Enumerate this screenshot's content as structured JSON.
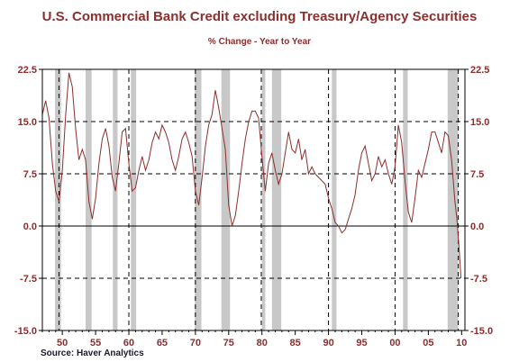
{
  "chart_data": {
    "type": "line",
    "title": "U.S. Commercial Bank Credit excluding Treasury/Agency Securities",
    "subtitle": "% Change - Year to Year",
    "source": "Source: Haver Analytics",
    "x_tick_labels": [
      "50",
      "55",
      "60",
      "65",
      "70",
      "75",
      "80",
      "85",
      "90",
      "95",
      "00",
      "05",
      "10"
    ],
    "x_tick_years": [
      1950,
      1955,
      1960,
      1965,
      1970,
      1975,
      1980,
      1985,
      1990,
      1995,
      2000,
      2005,
      2010
    ],
    "y_tick_labels": [
      "22.5",
      "15.0",
      "7.5",
      "0.0",
      "-7.5",
      "-15.0"
    ],
    "y_ticks": [
      22.5,
      15,
      7.5,
      0,
      -7.5,
      -15
    ],
    "xlim": [
      1947,
      2010.5
    ],
    "ylim": [
      -15,
      22.5
    ],
    "grid": "dashed horizontal lines at 7.5 and 15.0, -7.5; solid at 0",
    "recessions": [
      [
        1948.9,
        1949.8
      ],
      [
        1953.5,
        1954.4
      ],
      [
        1957.6,
        1958.3
      ],
      [
        1960.3,
        1961.1
      ],
      [
        1969.9,
        1970.9
      ],
      [
        1973.9,
        1975.2
      ],
      [
        1980.0,
        1980.5
      ],
      [
        1981.5,
        1982.9
      ],
      [
        1990.5,
        1991.2
      ],
      [
        2001.2,
        2001.9
      ],
      [
        2007.9,
        2009.5
      ]
    ],
    "vertical_dashed_lines": [
      1949.5,
      1960.0,
      1970.0,
      1979.9,
      1990.0,
      2000.0,
      2009.5
    ],
    "series": [
      {
        "color": "#8b2e2e",
        "points": [
          [
            1947.0,
            16.0
          ],
          [
            1947.5,
            18.0
          ],
          [
            1948.0,
            15.5
          ],
          [
            1948.5,
            9.0
          ],
          [
            1949.0,
            5.0
          ],
          [
            1949.5,
            3.5
          ],
          [
            1950.0,
            8.0
          ],
          [
            1950.5,
            16.0
          ],
          [
            1951.0,
            22.0
          ],
          [
            1951.5,
            20.0
          ],
          [
            1952.0,
            14.0
          ],
          [
            1952.5,
            9.5
          ],
          [
            1953.0,
            11.0
          ],
          [
            1953.5,
            9.5
          ],
          [
            1954.0,
            3.5
          ],
          [
            1954.5,
            1.0
          ],
          [
            1955.0,
            4.0
          ],
          [
            1955.5,
            9.0
          ],
          [
            1956.0,
            12.5
          ],
          [
            1956.5,
            14.0
          ],
          [
            1957.0,
            11.5
          ],
          [
            1957.5,
            7.0
          ],
          [
            1958.0,
            5.0
          ],
          [
            1958.5,
            9.0
          ],
          [
            1959.0,
            13.5
          ],
          [
            1959.5,
            14.0
          ],
          [
            1960.0,
            9.0
          ],
          [
            1960.5,
            5.0
          ],
          [
            1961.0,
            5.5
          ],
          [
            1961.5,
            8.0
          ],
          [
            1962.0,
            10.0
          ],
          [
            1962.5,
            8.0
          ],
          [
            1963.0,
            9.5
          ],
          [
            1963.5,
            12.0
          ],
          [
            1964.0,
            13.5
          ],
          [
            1964.5,
            12.5
          ],
          [
            1965.0,
            14.5
          ],
          [
            1965.5,
            13.5
          ],
          [
            1966.0,
            12.0
          ],
          [
            1966.5,
            9.5
          ],
          [
            1967.0,
            8.0
          ],
          [
            1967.5,
            10.0
          ],
          [
            1968.0,
            12.5
          ],
          [
            1968.5,
            13.5
          ],
          [
            1969.0,
            12.0
          ],
          [
            1969.5,
            10.0
          ],
          [
            1970.0,
            5.0
          ],
          [
            1970.5,
            3.0
          ],
          [
            1971.0,
            7.0
          ],
          [
            1971.5,
            11.5
          ],
          [
            1972.0,
            14.5
          ],
          [
            1972.5,
            16.0
          ],
          [
            1973.0,
            19.5
          ],
          [
            1973.5,
            17.0
          ],
          [
            1974.0,
            14.0
          ],
          [
            1974.5,
            11.0
          ],
          [
            1975.0,
            3.0
          ],
          [
            1975.5,
            0.0
          ],
          [
            1976.0,
            1.5
          ],
          [
            1976.5,
            5.0
          ],
          [
            1977.0,
            9.0
          ],
          [
            1977.5,
            12.5
          ],
          [
            1978.0,
            15.0
          ],
          [
            1978.5,
            16.5
          ],
          [
            1979.0,
            16.5
          ],
          [
            1979.5,
            15.5
          ],
          [
            1980.0,
            10.0
          ],
          [
            1980.5,
            5.0
          ],
          [
            1981.0,
            9.0
          ],
          [
            1981.5,
            10.5
          ],
          [
            1982.0,
            8.0
          ],
          [
            1982.5,
            6.0
          ],
          [
            1983.0,
            7.5
          ],
          [
            1983.5,
            10.5
          ],
          [
            1984.0,
            13.5
          ],
          [
            1984.5,
            11.0
          ],
          [
            1985.0,
            10.5
          ],
          [
            1985.5,
            12.5
          ],
          [
            1986.0,
            9.5
          ],
          [
            1986.5,
            11.0
          ],
          [
            1987.0,
            7.5
          ],
          [
            1987.5,
            8.5
          ],
          [
            1988.0,
            7.5
          ],
          [
            1988.5,
            7.0
          ],
          [
            1989.0,
            6.5
          ],
          [
            1989.5,
            6.0
          ],
          [
            1990.0,
            4.0
          ],
          [
            1990.5,
            2.5
          ],
          [
            1991.0,
            0.5
          ],
          [
            1991.5,
            0.0
          ],
          [
            1992.0,
            -1.0
          ],
          [
            1992.5,
            -0.5
          ],
          [
            1993.0,
            1.0
          ],
          [
            1993.5,
            2.5
          ],
          [
            1994.0,
            4.5
          ],
          [
            1994.5,
            8.0
          ],
          [
            1995.0,
            10.5
          ],
          [
            1995.5,
            11.5
          ],
          [
            1996.0,
            9.0
          ],
          [
            1996.5,
            6.5
          ],
          [
            1997.0,
            7.5
          ],
          [
            1997.5,
            10.0
          ],
          [
            1998.0,
            8.5
          ],
          [
            1998.5,
            9.5
          ],
          [
            1999.0,
            7.5
          ],
          [
            1999.5,
            6.0
          ],
          [
            2000.0,
            8.5
          ],
          [
            2000.5,
            14.5
          ],
          [
            2001.0,
            12.0
          ],
          [
            2001.5,
            6.5
          ],
          [
            2002.0,
            2.0
          ],
          [
            2002.5,
            0.5
          ],
          [
            2003.0,
            4.0
          ],
          [
            2003.5,
            8.0
          ],
          [
            2004.0,
            7.0
          ],
          [
            2004.5,
            9.0
          ],
          [
            2005.0,
            11.0
          ],
          [
            2005.5,
            13.5
          ],
          [
            2006.0,
            13.5
          ],
          [
            2006.5,
            12.0
          ],
          [
            2007.0,
            10.5
          ],
          [
            2007.5,
            13.5
          ],
          [
            2008.0,
            13.0
          ],
          [
            2008.5,
            9.5
          ],
          [
            2009.0,
            3.5
          ],
          [
            2009.3,
            1.0
          ],
          [
            2009.6,
            -3.0
          ],
          [
            2009.9,
            -7.5
          ]
        ]
      }
    ]
  }
}
